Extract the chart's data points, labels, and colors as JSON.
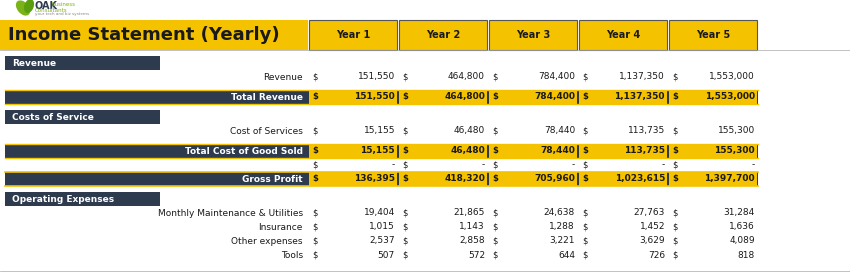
{
  "title": "Income Statement (Yearly)",
  "years": [
    "Year 1",
    "Year 2",
    "Year 3",
    "Year 4",
    "Year 5"
  ],
  "gold": "#F5C200",
  "dark_navy": "#2E3B4E",
  "white": "#FFFFFF",
  "black": "#1a1a1a",
  "light_gray": "#F0F0F0",
  "logo_green": "#7AB317",
  "logo_dark": "#2E3B4E",
  "title_bg": "#F5C200",
  "rows": [
    {
      "type": "blank_spacer"
    },
    {
      "type": "section_header",
      "label": "Revenue"
    },
    {
      "type": "data",
      "label": "Revenue",
      "values": [
        151550,
        464800,
        784400,
        1137350,
        1553000
      ]
    },
    {
      "type": "blank_spacer"
    },
    {
      "type": "subtotal",
      "label": "Total Revenue",
      "values": [
        151550,
        464800,
        784400,
        1137350,
        1553000
      ]
    },
    {
      "type": "blank_spacer"
    },
    {
      "type": "section_header",
      "label": "Costs of Service"
    },
    {
      "type": "data",
      "label": "Cost of Services",
      "values": [
        15155,
        46480,
        78440,
        113735,
        155300
      ]
    },
    {
      "type": "blank_spacer"
    },
    {
      "type": "subtotal",
      "label": "Total Cost of Good Sold",
      "values": [
        15155,
        46480,
        78440,
        113735,
        155300
      ]
    },
    {
      "type": "data_dash",
      "label": ""
    },
    {
      "type": "subtotal_gold",
      "label": "Gross Profit",
      "values": [
        136395,
        418320,
        705960,
        1023615,
        1397700
      ]
    },
    {
      "type": "blank_spacer"
    },
    {
      "type": "section_header",
      "label": "Operating Expenses"
    },
    {
      "type": "data",
      "label": "Monthly Maintenance & Utilities",
      "values": [
        19404,
        21865,
        24638,
        27763,
        31284
      ]
    },
    {
      "type": "data",
      "label": "Insurance",
      "values": [
        1015,
        1143,
        1288,
        1452,
        1636
      ]
    },
    {
      "type": "data",
      "label": "Other expenses",
      "values": [
        2537,
        2858,
        3221,
        3629,
        4089
      ]
    },
    {
      "type": "data",
      "label": "Tools",
      "values": [
        507,
        572,
        644,
        726,
        818
      ]
    }
  ]
}
